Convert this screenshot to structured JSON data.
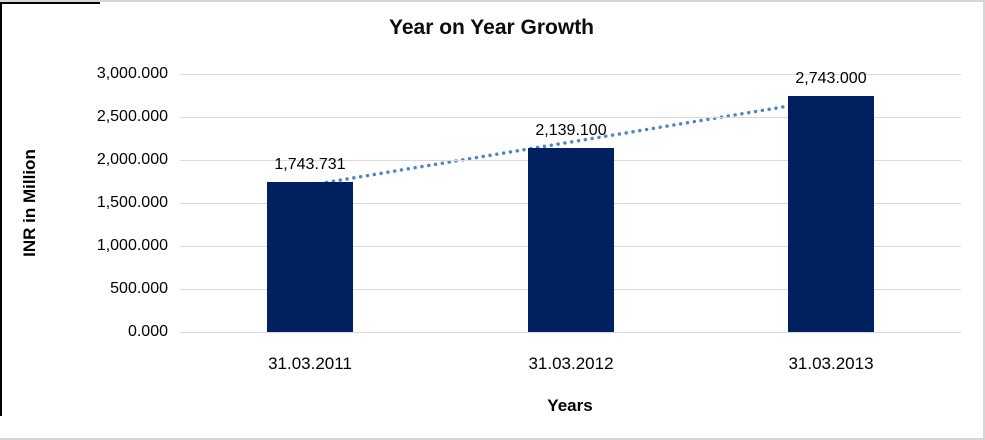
{
  "chart_data": {
    "type": "bar",
    "title": "Year on Year Growth",
    "xlabel": "Years",
    "ylabel": "INR in Million",
    "categories": [
      "31.03.2011",
      "31.03.2012",
      "31.03.2013"
    ],
    "values": [
      1743.731,
      2139.1,
      2743.0
    ],
    "data_labels": [
      "1,743.731",
      "2,139.100",
      "2,743.000"
    ],
    "ylim": [
      0,
      3000
    ],
    "ytick_interval": 500,
    "ytick_labels": [
      "0.000",
      "500.000",
      "1,000.000",
      "1,500.000",
      "2,000.000",
      "2,500.000",
      "3,000.000"
    ],
    "grid": true,
    "legend": "none",
    "bar_color": "#002060",
    "gridline_color": "#d9d9d9",
    "text_color": "#000000",
    "trendline": {
      "type": "linear",
      "style": "dotted",
      "color": "#4a86c8"
    }
  }
}
